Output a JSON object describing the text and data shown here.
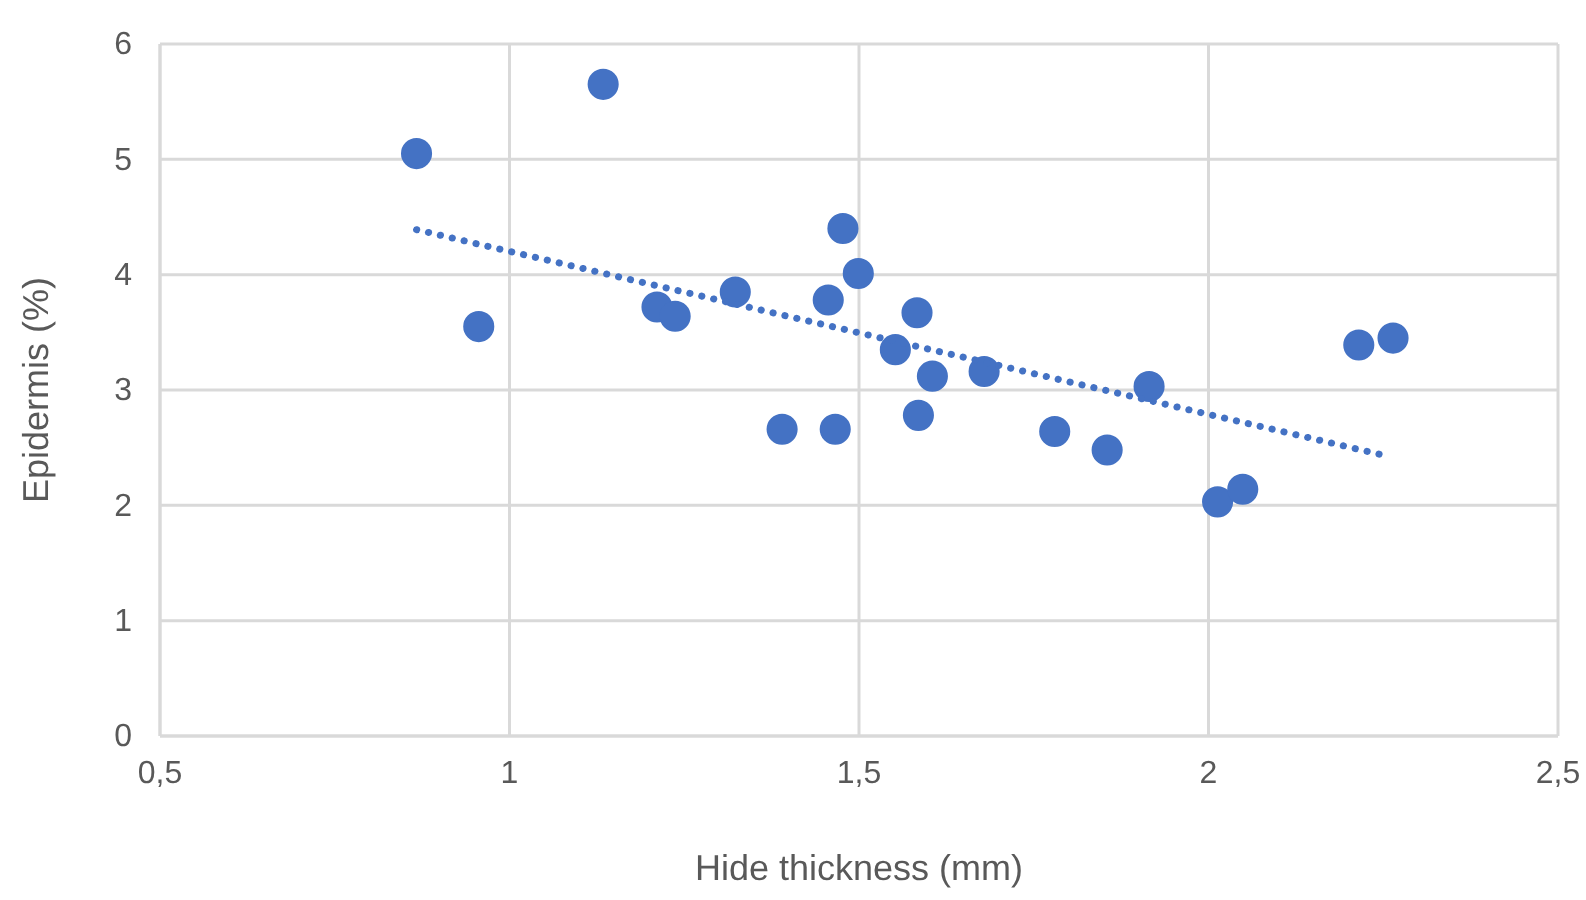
{
  "chart_data": {
    "type": "scatter",
    "xlabel": "Hide thickness (mm)",
    "ylabel": "Epidermis (%)",
    "xlim": [
      0.5,
      2.5
    ],
    "ylim": [
      0,
      6
    ],
    "xticks": [
      {
        "value": 0.5,
        "label": "0,5"
      },
      1,
      {
        "value": 1.5,
        "label": "1,5"
      },
      2,
      {
        "value": 2.5,
        "label": "2,5"
      }
    ],
    "yticks": [
      0,
      1,
      2,
      3,
      4,
      5,
      6
    ],
    "grid": true,
    "series": [
      {
        "color": "#4472c4",
        "marker": "circle",
        "x": [
          0.867,
          0.956,
          1.134,
          1.211,
          1.237,
          1.323,
          1.39,
          1.466,
          1.456,
          1.477,
          1.499,
          1.583,
          1.552,
          1.605,
          1.585,
          1.679,
          1.78,
          1.855,
          1.915,
          2.013,
          2.049,
          2.215,
          2.264
        ],
        "values": [
          5.05,
          3.55,
          5.65,
          3.72,
          3.64,
          3.85,
          2.66,
          2.66,
          3.78,
          4.4,
          4.01,
          3.67,
          3.35,
          3.12,
          2.78,
          3.16,
          2.64,
          2.48,
          3.03,
          2.03,
          2.14,
          3.39,
          3.45
        ]
      },
      {
        "type": "line",
        "color": "#4472c4",
        "line_style": "dotted",
        "x": [
          0.867,
          2.254
        ],
        "values": [
          4.39,
          2.43
        ]
      }
    ]
  }
}
